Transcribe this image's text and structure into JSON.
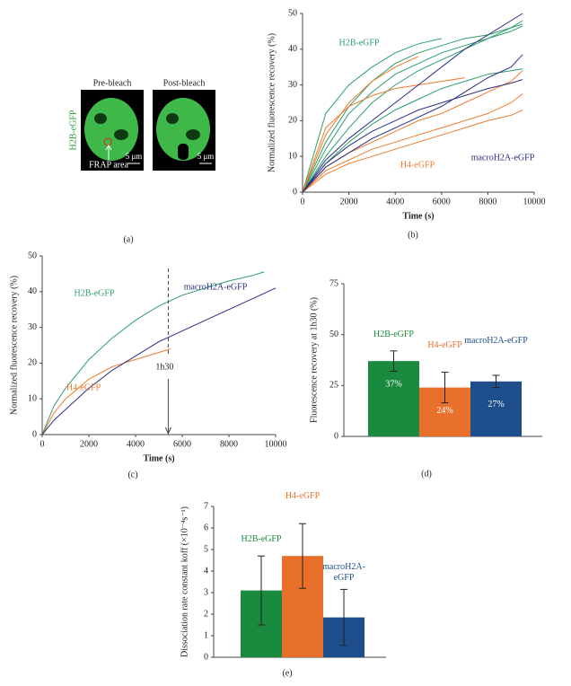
{
  "image_panel": {
    "panel_label": "(a)",
    "titles": [
      "Pre-bleach",
      "Post-bleach"
    ],
    "channel_label": "H2B-eGFP",
    "roi_label": "FRAP area",
    "scale_bars": [
      "5 μm",
      "5 μm"
    ]
  },
  "chart_data": [
    {
      "type": "line",
      "panel_label": "(b)",
      "x_label": "Time (s)",
      "y_label": "Normalized fluorescence recovery (%)",
      "xlim": [
        0,
        10000
      ],
      "ylim": [
        0,
        50
      ],
      "xticks": [
        0,
        2000,
        4000,
        6000,
        8000,
        10000
      ],
      "yticks": [
        0,
        10,
        20,
        30,
        40,
        50
      ],
      "x": [
        0,
        1000,
        2000,
        3000,
        4000,
        5000,
        6000,
        7000,
        8000,
        9000,
        9500
      ],
      "series": [
        {
          "color": "#2e9e6b",
          "values": [
            0,
            22,
            30,
            35,
            39,
            41.5,
            43,
            null,
            null,
            null,
            null
          ]
        },
        {
          "color": "#2e9e6b",
          "values": [
            0,
            14,
            24,
            31,
            36,
            39,
            41,
            43,
            44,
            46,
            47
          ]
        },
        {
          "color": "#2e9e6b",
          "values": [
            0,
            12,
            22,
            28,
            33,
            36,
            39,
            41,
            43,
            45,
            46.5
          ]
        },
        {
          "color": "#2e9e6b",
          "values": [
            0,
            10,
            18,
            25,
            30,
            34,
            37,
            40,
            43,
            46,
            48
          ]
        },
        {
          "color": "#2e9e6b",
          "values": [
            0,
            8,
            14,
            19,
            23,
            26,
            29,
            31,
            33,
            34,
            34.5
          ]
        },
        {
          "color": "#f07a2e",
          "values": [
            0,
            18,
            24,
            27,
            29,
            30,
            31,
            32,
            null,
            null,
            null
          ]
        },
        {
          "color": "#f07a2e",
          "values": [
            0,
            16,
            25,
            31,
            35,
            38,
            null,
            null,
            null,
            null,
            null
          ]
        },
        {
          "color": "#f07a2e",
          "values": [
            0,
            7,
            11,
            14,
            17,
            20,
            22,
            25,
            28,
            31,
            34
          ]
        },
        {
          "color": "#f07a2e",
          "values": [
            0,
            6,
            9,
            12,
            14,
            16,
            18,
            20,
            22,
            25,
            27.5
          ]
        },
        {
          "color": "#f07a2e",
          "values": [
            0,
            5,
            8,
            10,
            12,
            14,
            16,
            18,
            20,
            21.5,
            23
          ]
        },
        {
          "color": "#2b2f82",
          "values": [
            0,
            9,
            15,
            20,
            25,
            30,
            35,
            40,
            44,
            48,
            50
          ]
        },
        {
          "color": "#2b2f82",
          "values": [
            0,
            8,
            13,
            17,
            20,
            23,
            25,
            27,
            29,
            30.5,
            31.5
          ]
        },
        {
          "color": "#2b2f82",
          "values": [
            0,
            7,
            11,
            15,
            18,
            21,
            24,
            28,
            32,
            35,
            38.5
          ]
        }
      ],
      "annotations": [
        {
          "text": "H2B-eGFP",
          "color": "#2e9e6b"
        },
        {
          "text": "macroH2A-eGFP",
          "color": "#2b2f82"
        },
        {
          "text": "H4-eGFP",
          "color": "#f07a2e"
        }
      ]
    },
    {
      "type": "line",
      "panel_label": "(c)",
      "x_label": "Time (s)",
      "y_label": "Normalized fluorescence recovery (%)",
      "xlim": [
        0,
        10000
      ],
      "ylim": [
        0,
        50
      ],
      "xticks": [
        0,
        2000,
        4000,
        6000,
        8000,
        10000
      ],
      "yticks": [
        0,
        10,
        20,
        30,
        40,
        50
      ],
      "x": [
        0,
        500,
        1000,
        2000,
        3000,
        4000,
        5000,
        5500,
        6000,
        7000,
        8000,
        9000,
        9500,
        10000
      ],
      "series": [
        {
          "color": "#2e9e6b",
          "values": [
            0,
            8,
            13,
            21,
            27,
            32,
            36,
            37.5,
            39,
            41,
            43,
            44.5,
            45.5,
            null
          ]
        },
        {
          "color": "#f07a2e",
          "values": [
            0,
            6,
            10,
            15.5,
            19,
            21,
            23,
            24,
            null,
            null,
            null,
            null,
            null,
            null
          ]
        },
        {
          "color": "#2b2f82",
          "values": [
            0,
            4,
            7,
            13,
            18,
            22,
            26,
            27.5,
            29,
            32,
            35,
            38,
            39.5,
            41
          ]
        }
      ],
      "annotations": [
        {
          "text": "H2B-eGFP",
          "color": "#2e9e6b"
        },
        {
          "text": "macroH2A-eGFP",
          "color": "#2b2f82"
        },
        {
          "text": "H4-eGFP",
          "color": "#f07a2e"
        }
      ],
      "vline": {
        "x": 5400,
        "label": "1h30"
      }
    },
    {
      "type": "bar",
      "panel_label": "(d)",
      "y_label": "Fluorescence recovery at 1h30 (%)",
      "ylim": [
        0,
        75
      ],
      "yticks": [
        0,
        25,
        50,
        75
      ],
      "categories": [
        "H2B-eGFP",
        "H4-eGFP",
        "macroH2A-eGFP"
      ],
      "colors": [
        "#1a8a3e",
        "#e8702a",
        "#1f4e8c"
      ],
      "values": [
        37,
        24,
        27
      ],
      "value_labels": [
        "37%",
        "24%",
        "27%"
      ],
      "errors": [
        5,
        7.5,
        3
      ]
    },
    {
      "type": "bar",
      "panel_label": "(e)",
      "y_label": "Dissociation rate constant koff (×10⁻⁴s⁻¹)",
      "ylim": [
        0,
        7
      ],
      "yticks": [
        0,
        1,
        2,
        3,
        4,
        5,
        6,
        7
      ],
      "categories": [
        "H2B-eGFP",
        "H4-eGFP",
        "macroH2A-eGFP"
      ],
      "colors": [
        "#1a8a3e",
        "#e8702a",
        "#1f4e8c"
      ],
      "values": [
        3.1,
        4.7,
        1.85
      ],
      "errors": [
        1.6,
        1.5,
        1.3
      ]
    }
  ]
}
